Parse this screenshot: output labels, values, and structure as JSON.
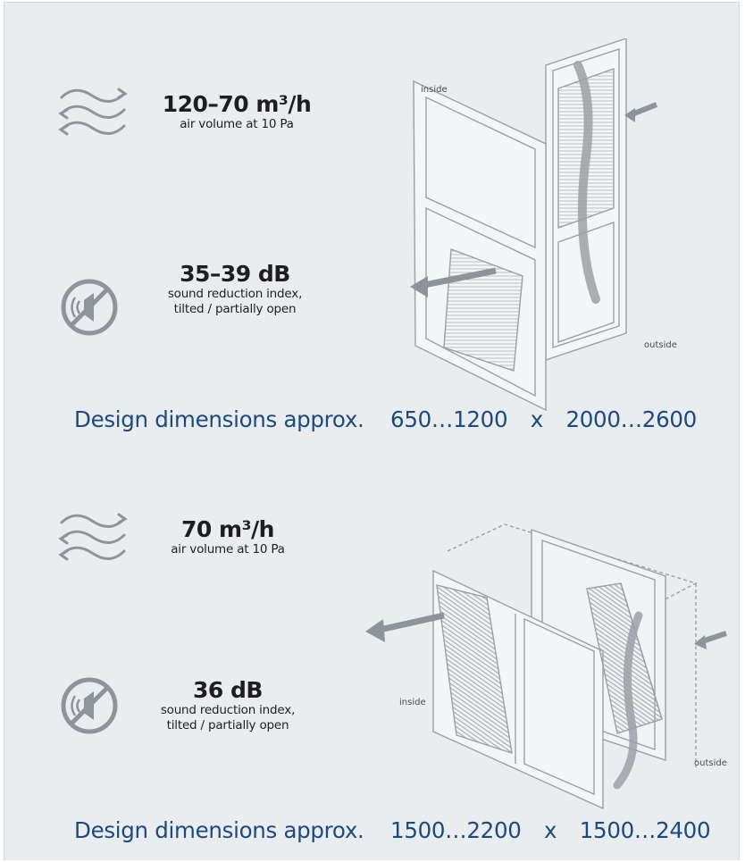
{
  "blocks": [
    {
      "airflow": {
        "value": "120–70 m³/h",
        "desc": "air volume at 10 Pa"
      },
      "sound": {
        "value": "35–39 dB",
        "desc_line1": "sound reduction index,",
        "desc_line2": "tilted / partially open"
      },
      "dimensions": {
        "label": "Design dimensions approx.",
        "width": "650…1200",
        "times": "x",
        "height": "2000…2600"
      },
      "diagram": {
        "inside_label": "inside",
        "outside_label": "outside"
      }
    },
    {
      "airflow": {
        "value": "70 m³/h",
        "desc": "air volume at 10 Pa"
      },
      "sound": {
        "value": "36 dB",
        "desc_line1": "sound reduction index,",
        "desc_line2": "tilted / partially open"
      },
      "dimensions": {
        "label": "Design dimensions approx.",
        "width": "1500…2200",
        "times": "x",
        "height": "1500…2400"
      },
      "diagram": {
        "inside_label": "inside",
        "outside_label": "outside"
      }
    }
  ],
  "icons": {
    "airflow": "airflow-waves-icon",
    "sound": "no-sound-icon"
  },
  "colors": {
    "background": "#eaedf0",
    "dimension_text": "#1c4a7c",
    "icon_gray": "#8f949a"
  }
}
